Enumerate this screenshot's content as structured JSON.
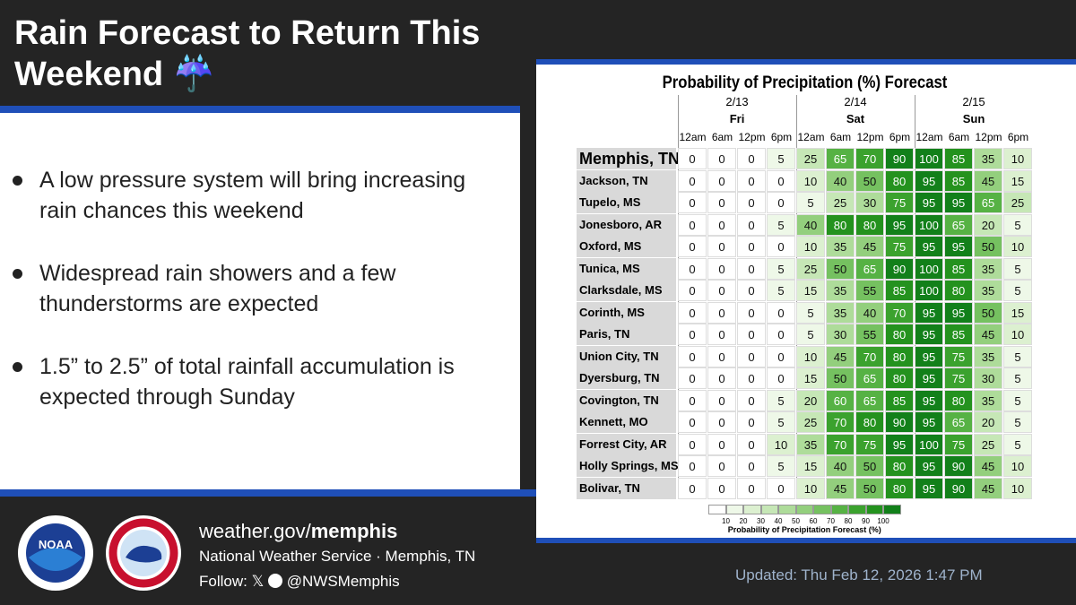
{
  "header": {
    "title": "Rain Forecast to Return This Weekend ☔"
  },
  "bullets": [
    "A low pressure system will bring increasing rain chances this weekend",
    "Widespread rain showers and a few thunderstorms are expected",
    "1.5” to 2.5” of total rainfall accumulation is expected through Sunday"
  ],
  "table": {
    "title": "Probability of Precipitation (%) Forecast",
    "days": [
      {
        "date": "2/13",
        "day": "Fri"
      },
      {
        "date": "2/14",
        "day": "Sat"
      },
      {
        "date": "2/15",
        "day": "Sun"
      }
    ],
    "times": [
      "12am",
      "6am",
      "12pm",
      "6pm",
      "12am",
      "6am",
      "12pm",
      "6pm",
      "12am",
      "6am",
      "12pm",
      "6pm"
    ],
    "rows": [
      {
        "name": "Memphis, TN",
        "values": [
          0,
          0,
          0,
          5,
          25,
          65,
          70,
          90,
          100,
          85,
          35,
          10
        ]
      },
      {
        "name": "Jackson, TN",
        "values": [
          0,
          0,
          0,
          0,
          10,
          40,
          50,
          80,
          95,
          85,
          45,
          15
        ]
      },
      {
        "name": "Tupelo, MS",
        "values": [
          0,
          0,
          0,
          0,
          5,
          25,
          30,
          75,
          95,
          95,
          65,
          25
        ]
      },
      {
        "name": "Jonesboro, AR",
        "values": [
          0,
          0,
          0,
          5,
          40,
          80,
          80,
          95,
          100,
          65,
          20,
          5
        ]
      },
      {
        "name": "Oxford, MS",
        "values": [
          0,
          0,
          0,
          0,
          10,
          35,
          45,
          75,
          95,
          95,
          50,
          10
        ]
      },
      {
        "name": "Tunica, MS",
        "values": [
          0,
          0,
          0,
          5,
          25,
          50,
          65,
          90,
          100,
          85,
          35,
          5
        ]
      },
      {
        "name": "Clarksdale, MS",
        "values": [
          0,
          0,
          0,
          5,
          15,
          35,
          55,
          85,
          100,
          80,
          35,
          5
        ]
      },
      {
        "name": "Corinth, MS",
        "values": [
          0,
          0,
          0,
          0,
          5,
          35,
          40,
          70,
          95,
          95,
          50,
          15
        ]
      },
      {
        "name": "Paris, TN",
        "values": [
          0,
          0,
          0,
          0,
          5,
          30,
          55,
          80,
          95,
          85,
          45,
          10
        ]
      },
      {
        "name": "Union City, TN",
        "values": [
          0,
          0,
          0,
          0,
          10,
          45,
          70,
          80,
          95,
          75,
          35,
          5
        ]
      },
      {
        "name": "Dyersburg, TN",
        "values": [
          0,
          0,
          0,
          0,
          15,
          50,
          65,
          80,
          95,
          75,
          30,
          5
        ]
      },
      {
        "name": "Covington, TN",
        "values": [
          0,
          0,
          0,
          5,
          20,
          60,
          65,
          85,
          95,
          80,
          35,
          5
        ]
      },
      {
        "name": "Kennett, MO",
        "values": [
          0,
          0,
          0,
          5,
          25,
          70,
          80,
          90,
          95,
          65,
          20,
          5
        ]
      },
      {
        "name": "Forrest City, AR",
        "values": [
          0,
          0,
          0,
          10,
          35,
          70,
          75,
          95,
          100,
          75,
          25,
          5
        ]
      },
      {
        "name": "Holly Springs, MS",
        "values": [
          0,
          0,
          0,
          5,
          15,
          40,
          50,
          80,
          95,
          90,
          45,
          10
        ]
      },
      {
        "name": "Bolivar, TN",
        "values": [
          0,
          0,
          0,
          0,
          10,
          45,
          50,
          80,
          95,
          90,
          45,
          10
        ]
      }
    ],
    "legend": {
      "ticks": [
        10,
        20,
        30,
        40,
        50,
        60,
        70,
        80,
        90,
        100
      ],
      "colors": [
        "#ffffff",
        "#eef8e8",
        "#dcf0d0",
        "#c6e7b6",
        "#aedc9a",
        "#93cf7d",
        "#75c160",
        "#56b244",
        "#3ba22e",
        "#24921e",
        "#12801a"
      ],
      "label": "Probability of Precipitation Forecast (%)"
    }
  },
  "footer": {
    "url_plain": "weather.gov/",
    "url_bold": "memphis",
    "org": "National Weather Service · Memphis, TN",
    "follow": "Follow:",
    "x_icon": "𝕏",
    "handle": "@NWSMemphis",
    "updated": "Updated: Thu Feb 12, 2026 1:47 PM",
    "noaa": "NOAA"
  }
}
